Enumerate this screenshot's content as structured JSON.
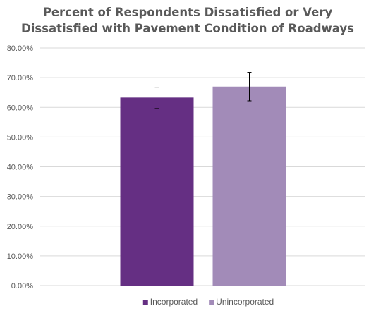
{
  "chart_data": {
    "type": "bar",
    "title_lines": [
      "Percent of Respondents Dissatisfied or Very",
      "Dissatisfied with Pavement Condition of Roadways"
    ],
    "categories": [
      ""
    ],
    "series": [
      {
        "name": "Incorporated",
        "values": [
          63.3
        ],
        "error_low": [
          59.6
        ],
        "error_high": [
          66.8
        ],
        "color": "#652f83"
      },
      {
        "name": "Unincorporated",
        "values": [
          67.0
        ],
        "error_low": [
          62.2
        ],
        "error_high": [
          71.8
        ],
        "color": "#a28bb8"
      }
    ],
    "ylim": [
      0,
      80
    ],
    "y_ticks": [
      "0.00%",
      "10.00%",
      "20.00%",
      "30.00%",
      "40.00%",
      "50.00%",
      "60.00%",
      "70.00%",
      "80.00%"
    ],
    "grid": true,
    "legend_position": "bottom"
  }
}
